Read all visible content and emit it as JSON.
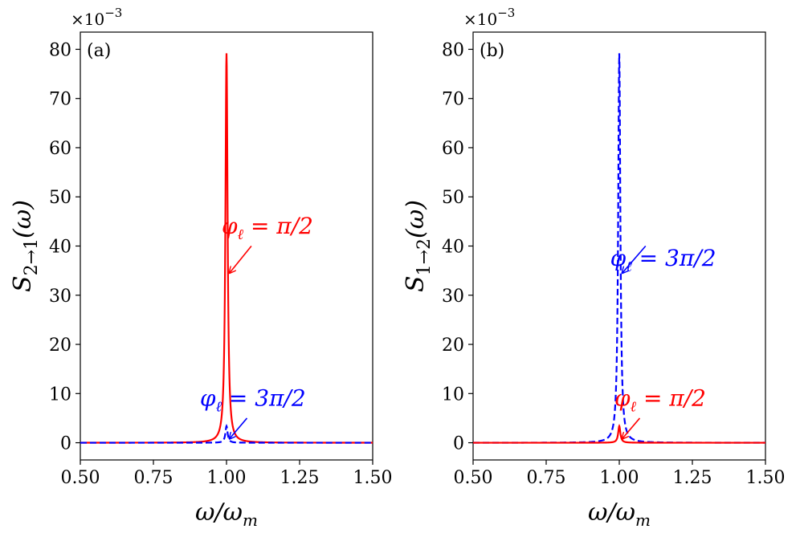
{
  "chart_data": [
    {
      "type": "line",
      "panel_label": "(a)",
      "title": "",
      "xlabel": "ω/ω_m",
      "ylabel": "S_{2→1}(ω)",
      "ylabel_main": "S",
      "ylabel_sub": "2→1",
      "ylabel_tail": "(ω)",
      "xlim": [
        0.5,
        1.5
      ],
      "ylim": [
        -3.5,
        83.5
      ],
      "x_ticks": [
        0.5,
        0.75,
        1.0,
        1.25,
        1.5
      ],
      "x_tick_labels": [
        "0.50",
        "0.75",
        "1.00",
        "1.25",
        "1.50"
      ],
      "y_ticks": [
        0,
        10,
        20,
        30,
        40,
        50,
        60,
        70,
        80
      ],
      "y_tick_labels": [
        "0",
        "10",
        "20",
        "30",
        "40",
        "50",
        "60",
        "70",
        "80"
      ],
      "y_scale_label": "×10",
      "y_scale_exponent": "−3",
      "grid": false,
      "series": [
        {
          "name": "φ_ℓ = π/2",
          "color": "#ff0000",
          "style": "solid",
          "peak_x": 1.0,
          "peak_y": 79.2,
          "width": 0.0045
        },
        {
          "name": "φ_ℓ = 3π/2",
          "color": "#0000ff",
          "style": "dashed",
          "peak_x": 1.0,
          "peak_y": 3.4,
          "width": 0.0045
        }
      ],
      "annotations": [
        {
          "text_main": "φ",
          "text_sub": "ℓ",
          "text_rest": " = π/2",
          "color": "#ff0000",
          "text_x": 1.14,
          "text_y": 42.5,
          "arrow_x": 1.085,
          "arrow_y": 40.0,
          "point_x": 1.01,
          "point_y": 34.5
        },
        {
          "text_main": "φ",
          "text_sub": "ℓ",
          "text_rest": " = 3π/2",
          "color": "#0000ff",
          "text_x": 1.09,
          "text_y": 7.5,
          "arrow_x": 1.07,
          "arrow_y": 5.0,
          "point_x": 1.01,
          "point_y": 0.8
        }
      ]
    },
    {
      "type": "line",
      "panel_label": "(b)",
      "title": "",
      "xlabel": "ω/ω_m",
      "ylabel": "S_{1→2}(ω)",
      "ylabel_main": "S",
      "ylabel_sub": "1→2",
      "ylabel_tail": "(ω)",
      "xlim": [
        0.5,
        1.5
      ],
      "ylim": [
        -3.5,
        83.5
      ],
      "x_ticks": [
        0.5,
        0.75,
        1.0,
        1.25,
        1.5
      ],
      "x_tick_labels": [
        "0.50",
        "0.75",
        "1.00",
        "1.25",
        "1.50"
      ],
      "y_ticks": [
        0,
        10,
        20,
        30,
        40,
        50,
        60,
        70,
        80
      ],
      "y_tick_labels": [
        "0",
        "10",
        "20",
        "30",
        "40",
        "50",
        "60",
        "70",
        "80"
      ],
      "y_scale_label": "×10",
      "y_scale_exponent": "−3",
      "grid": false,
      "series": [
        {
          "name": "φ_ℓ = 3π/2",
          "color": "#0000ff",
          "style": "dashed",
          "peak_x": 1.0,
          "peak_y": 79.2,
          "width": 0.0045
        },
        {
          "name": "φ_ℓ = π/2",
          "color": "#ff0000",
          "style": "solid",
          "peak_x": 1.0,
          "peak_y": 3.4,
          "width": 0.0045
        }
      ],
      "annotations": [
        {
          "text_main": "φ",
          "text_sub": "ℓ",
          "text_rest": " = 3π/2",
          "color": "#0000ff",
          "text_x": 1.15,
          "text_y": 36.0,
          "arrow_x": 1.09,
          "arrow_y": 40.0,
          "point_x": 1.01,
          "point_y": 34.5
        },
        {
          "text_main": "φ",
          "text_sub": "ℓ",
          "text_rest": " = π/2",
          "color": "#ff0000",
          "text_x": 1.14,
          "text_y": 7.5,
          "arrow_x": 1.07,
          "arrow_y": 5.0,
          "point_x": 1.01,
          "point_y": 0.8
        }
      ]
    }
  ]
}
